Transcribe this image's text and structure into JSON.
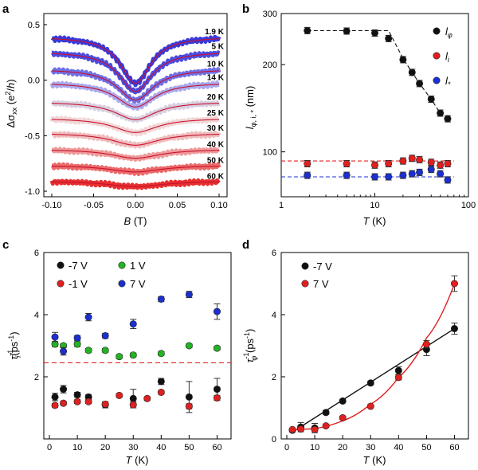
{
  "chart_data": [
    {
      "panel": "a",
      "type": "line",
      "xlabel": "B (T)",
      "ylabel": "Δσxx (e²/h)",
      "xlim": [
        -0.1,
        0.1
      ],
      "ylim": [
        -1.05,
        0.6
      ],
      "xticks": [
        "-0.10",
        "-0.05",
        "0.00",
        "0.05",
        "0.10"
      ],
      "yticks": [
        "0.5",
        "0.0",
        "-0.5",
        "-1.0"
      ],
      "series": [
        {
          "name": "1.9 K",
          "offset": 0.3,
          "depth": 0.42,
          "width": 0.022,
          "color": "#3a3ad8"
        },
        {
          "name": "5 K",
          "offset": 0.18,
          "depth": 0.36,
          "width": 0.024,
          "color": "#4c4ce0"
        },
        {
          "name": "10 K",
          "offset": 0.04,
          "depth": 0.28,
          "width": 0.026,
          "color": "#7070e6"
        },
        {
          "name": "14 K",
          "offset": -0.07,
          "depth": 0.22,
          "width": 0.028,
          "color": "#a9a9ec"
        },
        {
          "name": "20 K",
          "offset": -0.23,
          "depth": 0.16,
          "width": 0.03,
          "color": "#d8cfe0"
        },
        {
          "name": "25 K",
          "offset": -0.37,
          "depth": 0.13,
          "width": 0.032,
          "color": "#f1d6d6"
        },
        {
          "name": "30 K",
          "offset": -0.5,
          "depth": 0.11,
          "width": 0.034,
          "color": "#efbdbd"
        },
        {
          "name": "40 K",
          "offset": -0.64,
          "depth": 0.08,
          "width": 0.036,
          "color": "#ee9a9a"
        },
        {
          "name": "50 K",
          "offset": -0.78,
          "depth": 0.06,
          "width": 0.038,
          "color": "#eb6a6a"
        },
        {
          "name": "60 K",
          "offset": -0.92,
          "depth": 0.05,
          "width": 0.04,
          "color": "#e63030"
        }
      ]
    },
    {
      "panel": "b",
      "type": "scatter",
      "xlabel": "T (K)",
      "ylabel": "l φ,i,* (nm)",
      "xscale": "log",
      "yscale": "log",
      "xlim": [
        1,
        100
      ],
      "ylim": [
        70,
        300
      ],
      "xticks": [
        "1",
        "10",
        "100"
      ],
      "yticks": [
        "100",
        "200",
        "300"
      ],
      "series": [
        {
          "name": "lφ",
          "color": "#111111",
          "x": [
            1.9,
            5,
            10,
            14,
            20,
            25,
            30,
            40,
            50,
            60
          ],
          "y": [
            262,
            261,
            257,
            246,
            208,
            188,
            172,
            152,
            136,
            130
          ]
        },
        {
          "name": "li",
          "color": "#e02020",
          "x": [
            1.9,
            5,
            10,
            14,
            20,
            25,
            30,
            40,
            50,
            60
          ],
          "y": [
            91,
            91,
            90,
            91,
            93,
            95,
            94,
            92,
            90,
            91
          ]
        },
        {
          "name": "l*",
          "color": "#1c2fd0",
          "x": [
            1.9,
            5,
            10,
            14,
            20,
            25,
            30,
            40,
            50,
            60
          ],
          "y": [
            83,
            83,
            82,
            82,
            83,
            84,
            85,
            87,
            84,
            80
          ]
        }
      ],
      "fits": [
        {
          "color": "#111111",
          "x": [
            1.9,
            14,
            20,
            25,
            30,
            40,
            50,
            60
          ],
          "y": [
            262,
            262,
            210,
            188,
            172,
            152,
            136,
            127
          ]
        },
        {
          "color": "#e02020",
          "x": [
            1,
            70
          ],
          "y": [
            93,
            93
          ]
        },
        {
          "color": "#1c2fd0",
          "x": [
            1,
            70
          ],
          "y": [
            82,
            82
          ]
        }
      ],
      "legend": [
        "lφ",
        "li",
        "l*"
      ]
    },
    {
      "panel": "c",
      "type": "scatter",
      "xlabel": "T (K)",
      "ylabel": "τi⁻¹ (ps⁻¹)",
      "xlim": [
        -2,
        65
      ],
      "ylim": [
        0,
        6
      ],
      "xticks": [
        "0",
        "10",
        "20",
        "30",
        "40",
        "50",
        "60"
      ],
      "yticks": [
        "2",
        "4",
        "6"
      ],
      "hline": 2.45,
      "series": [
        {
          "name": "-7 V",
          "color": "#111111",
          "x": [
            2,
            5,
            10,
            14,
            20,
            30,
            40,
            50,
            60
          ],
          "y": [
            1.35,
            1.6,
            1.42,
            1.35,
            1.1,
            1.3,
            1.85,
            1.35,
            1.6
          ],
          "err": [
            0.12,
            0.12,
            0.08,
            0.08,
            0.1,
            0.3,
            0.1,
            0.5,
            0.35
          ]
        },
        {
          "name": "-1 V",
          "color": "#e02020",
          "x": [
            2,
            5,
            10,
            14,
            20,
            25,
            30,
            35,
            40,
            50,
            60
          ],
          "y": [
            1.08,
            1.15,
            1.2,
            1.2,
            1.12,
            1.4,
            1.1,
            1.3,
            1.5,
            1.05,
            1.32
          ],
          "err": [
            0.06,
            0.06,
            0.06,
            0.06,
            0.06,
            0.06,
            0.1,
            0.06,
            0.06,
            0.08,
            0.08
          ]
        },
        {
          "name": "1 V",
          "color": "#22b422",
          "x": [
            2,
            5,
            10,
            14,
            20,
            25,
            30,
            40,
            50,
            60
          ],
          "y": [
            3.05,
            3.0,
            3.05,
            2.85,
            2.85,
            2.65,
            2.7,
            2.75,
            3.0,
            2.92
          ],
          "err": [
            0.08,
            0.06,
            0.08,
            0.06,
            0.06,
            0.06,
            0.06,
            0.06,
            0.06,
            0.06
          ]
        },
        {
          "name": "7 V",
          "color": "#1c2fd0",
          "x": [
            2,
            5,
            10,
            14,
            20,
            30,
            40,
            50,
            60
          ],
          "y": [
            3.28,
            2.82,
            3.25,
            3.92,
            3.32,
            3.7,
            4.5,
            4.65,
            4.1
          ],
          "err": [
            0.15,
            0.12,
            0.08,
            0.12,
            0.08,
            0.15,
            0.08,
            0.1,
            0.25
          ]
        }
      ],
      "legend": [
        "-7 V",
        "1 V",
        "-1 V",
        "7 V"
      ]
    },
    {
      "panel": "d",
      "type": "scatter",
      "xlabel": "T (K)",
      "ylabel": "τφ⁻¹ (ps⁻¹)",
      "xlim": [
        -2,
        65
      ],
      "ylim": [
        0,
        6
      ],
      "xticks": [
        "0",
        "10",
        "20",
        "30",
        "40",
        "50",
        "60"
      ],
      "yticks": [
        "0",
        "2",
        "4",
        "6"
      ],
      "series": [
        {
          "name": "-7 V",
          "color": "#111111",
          "x": [
            2,
            5,
            10,
            14,
            20,
            30,
            40,
            50,
            60
          ],
          "y": [
            0.28,
            0.38,
            0.35,
            0.85,
            1.22,
            1.8,
            2.2,
            2.88,
            3.55
          ],
          "err": [
            0.05,
            0.15,
            0.15,
            0.06,
            0.06,
            0.06,
            0.12,
            0.2,
            0.18
          ]
        },
        {
          "name": "7 V",
          "color": "#e02020",
          "x": [
            2,
            5,
            10,
            14,
            20,
            30,
            40,
            50,
            60
          ],
          "y": [
            0.3,
            0.32,
            0.3,
            0.42,
            0.68,
            1.05,
            1.98,
            3.05,
            5.0
          ],
          "err": [
            0.04,
            0.04,
            0.04,
            0.04,
            0.05,
            0.05,
            0.08,
            0.12,
            0.25
          ]
        }
      ],
      "fits": [
        {
          "color": "#111111",
          "x": [
            2,
            60
          ],
          "y": [
            0.22,
            3.55
          ]
        },
        {
          "color": "#e02020",
          "x": [
            2,
            10,
            20,
            30,
            40,
            50,
            60
          ],
          "y": [
            0.3,
            0.33,
            0.58,
            1.12,
            1.98,
            3.25,
            5.0
          ]
        }
      ],
      "legend": [
        "-7 V",
        "7 V"
      ]
    }
  ]
}
